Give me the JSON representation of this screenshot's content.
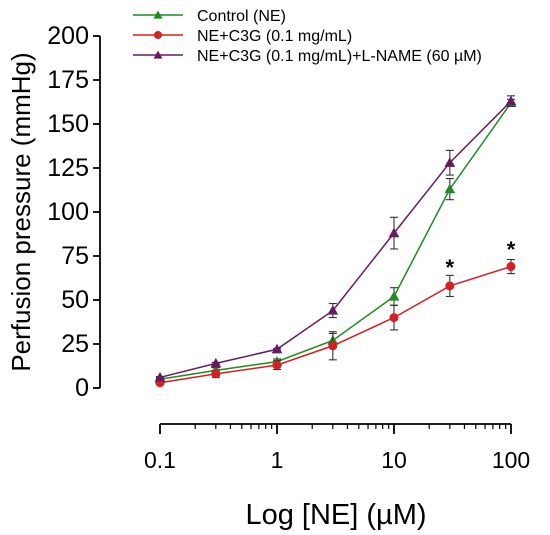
{
  "chart_data": {
    "type": "line",
    "xscale": "log",
    "xlabel": "Log [NE] (µM)",
    "ylabel": "Perfusion pressure (mmHg)",
    "xlim": [
      0.1,
      100
    ],
    "ylim": [
      0,
      200
    ],
    "xticks": [
      0.1,
      1,
      10,
      100
    ],
    "xtick_labels": [
      "0.1",
      "1",
      "10",
      "100"
    ],
    "yticks": [
      0,
      25,
      50,
      75,
      100,
      125,
      150,
      175,
      200
    ],
    "ytick_labels": [
      "0",
      "25",
      "50",
      "75",
      "100",
      "125",
      "150",
      "175",
      "200"
    ],
    "grid": false,
    "legend_position": "top",
    "series": [
      {
        "name": "Control (NE)",
        "marker": "triangle",
        "color": "#1e8c1e",
        "x": [
          0.1,
          0.3,
          1,
          3,
          10,
          30,
          100
        ],
        "y": [
          5,
          10,
          15,
          27,
          52,
          113,
          162
        ],
        "err": [
          1,
          1.5,
          1.5,
          4,
          5,
          6,
          2
        ]
      },
      {
        "name": "NE+C3G (0.1 mg/mL)",
        "marker": "circle",
        "color": "#d42020",
        "x": [
          0.1,
          0.3,
          1,
          3,
          10,
          30,
          100
        ],
        "y": [
          3,
          8,
          13,
          24,
          40,
          58,
          69
        ],
        "err": [
          1,
          2,
          2.5,
          8,
          7,
          6,
          4
        ]
      },
      {
        "name": "NE+C3G (0.1 mg/mL)+L-NAME (60 µM)",
        "marker": "triangle",
        "color": "#6a1a62",
        "x": [
          0.1,
          0.3,
          1,
          3,
          10,
          30,
          100
        ],
        "y": [
          6,
          14,
          22,
          44,
          88,
          128,
          163
        ],
        "err": [
          0.5,
          0.5,
          0.5,
          4,
          9,
          7,
          3
        ]
      }
    ],
    "annotations": [
      {
        "text": "*",
        "x": 30,
        "y": 70
      },
      {
        "text": "*",
        "x": 100,
        "y": 80
      }
    ]
  }
}
